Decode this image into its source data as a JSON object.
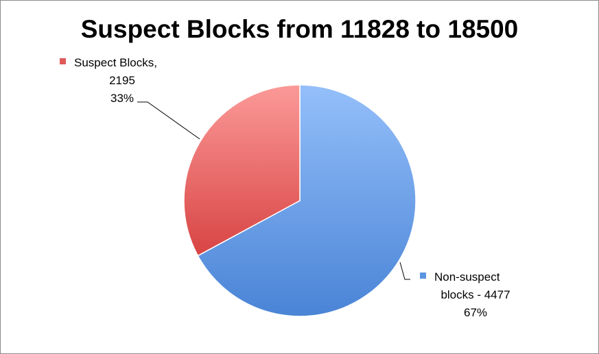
{
  "chart_data": {
    "type": "pie",
    "title": "Suspect Blocks from 11828 to 18500",
    "slices": [
      {
        "label_line1": "Non-suspect",
        "label_line2": "blocks - 4477",
        "value": 4477,
        "percent_label": "67%",
        "color": "#5b94e0"
      },
      {
        "label_line1": "Suspect Blocks,",
        "label_line2": "2195",
        "value": 2195,
        "percent_label": "33%",
        "color": "#e05a5a"
      }
    ]
  }
}
